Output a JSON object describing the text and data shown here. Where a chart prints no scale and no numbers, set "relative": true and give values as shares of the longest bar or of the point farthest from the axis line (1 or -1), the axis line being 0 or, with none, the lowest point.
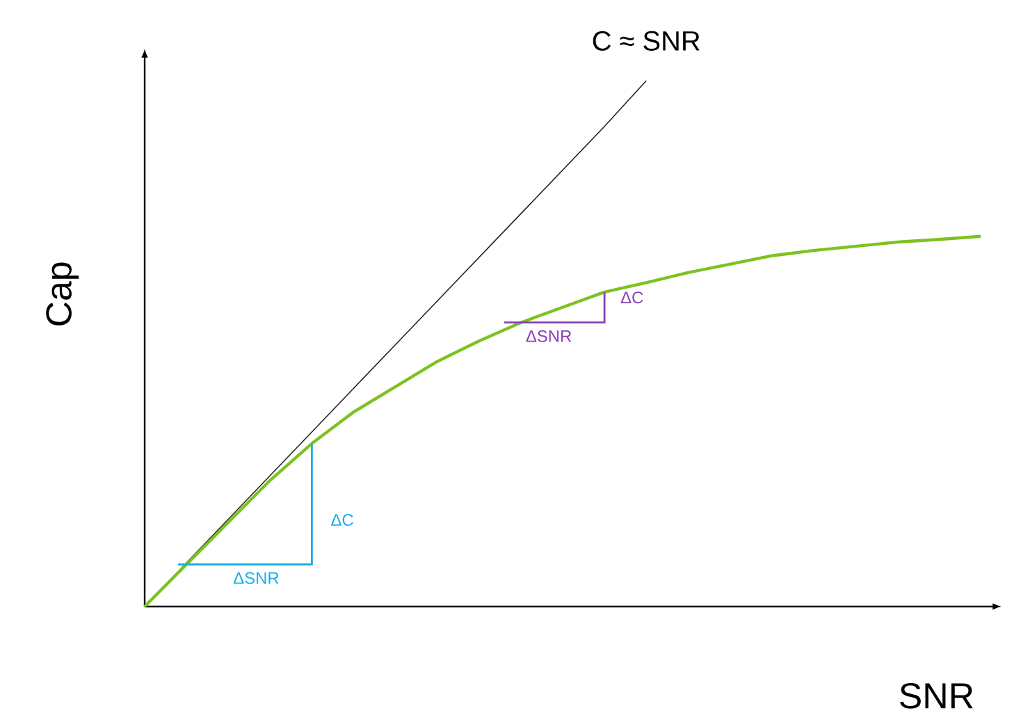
{
  "chart_data": {
    "type": "line",
    "relative": true,
    "xlabel": "SNR",
    "ylabel": "Cap",
    "categories": [
      null,
      null,
      null,
      null,
      null,
      null,
      null,
      null,
      null,
      null,
      null,
      null,
      null,
      null,
      null,
      null,
      null,
      null,
      null,
      null,
      null
    ],
    "series": [
      {
        "color": "#222222",
        "values": [
          0,
          null,
          0.166,
          0.249,
          0.332,
          0.415,
          0.498,
          0.581,
          0.664,
          0.747,
          0.83,
          0.913,
          1,
          null,
          null,
          null,
          null,
          null,
          null,
          null,
          null
        ]
      },
      {
        "color": "#7cc221",
        "values": [
          0,
          0.08,
          0.16,
          0.24,
          0.31,
          0.37,
          0.418,
          0.466,
          0.505,
          0.54,
          0.569,
          0.598,
          0.616,
          0.635,
          0.651,
          0.667,
          0.677,
          0.685,
          0.693,
          0.698,
          0.704
        ]
      }
    ],
    "annotations": [
      "C ≈ SNR",
      "ΔC",
      "ΔSNR",
      "ΔC",
      "ΔSNR"
    ]
  }
}
